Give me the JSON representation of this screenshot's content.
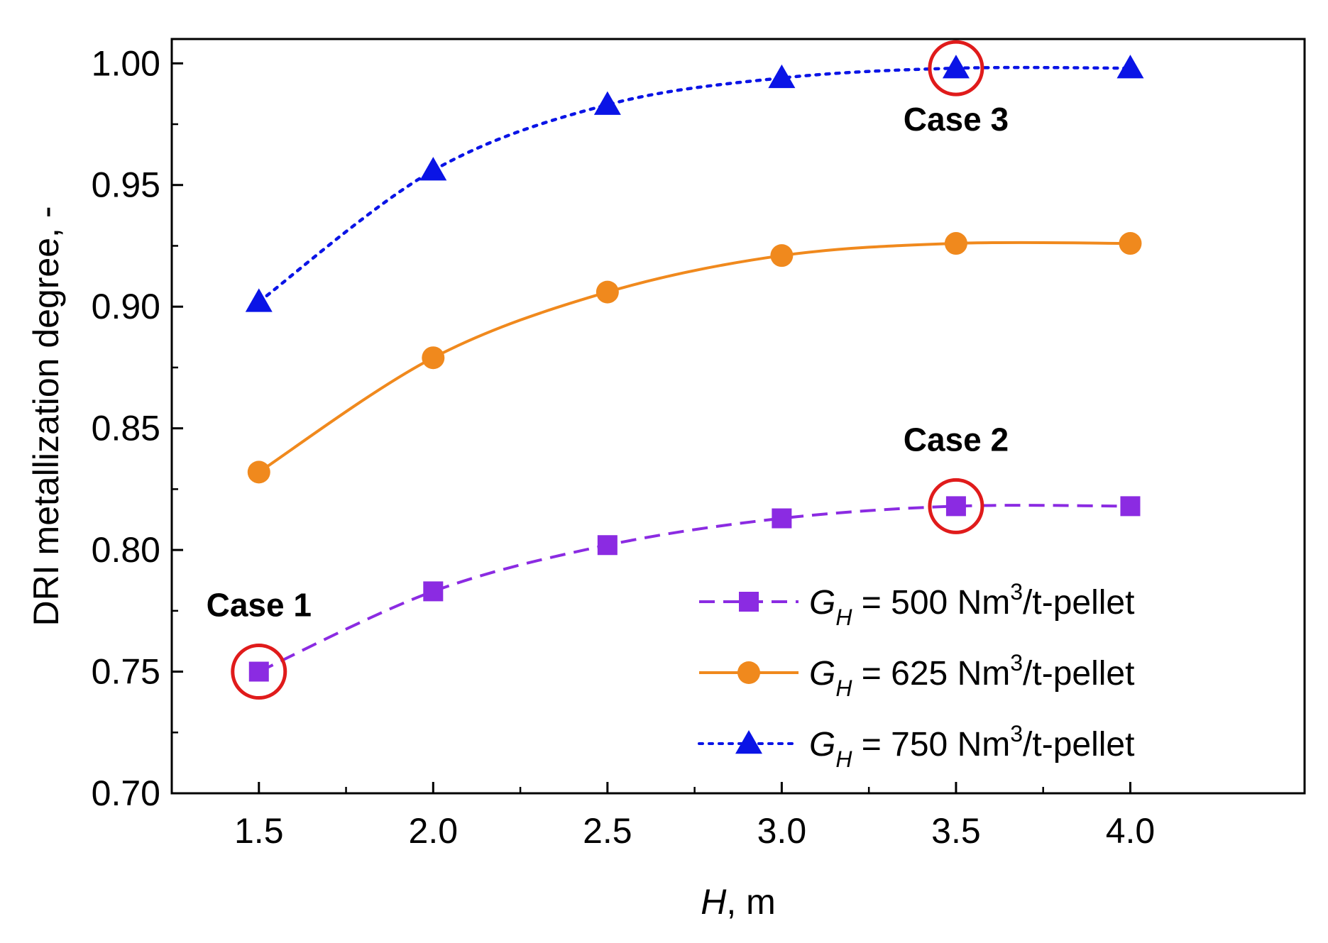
{
  "chart_data": {
    "type": "line",
    "title": "",
    "xlabel": "m",
    "xlabel_var": "H",
    "xlabel_sep": ", ",
    "ylabel": "DRI metallization degree, -",
    "xlim": [
      1.25,
      4.5
    ],
    "ylim": [
      0.7,
      1.01
    ],
    "xticks": [
      "1.5",
      "2.0",
      "2.5",
      "3.0",
      "3.5",
      "4.0"
    ],
    "yticks": [
      "0.70",
      "0.75",
      "0.80",
      "0.85",
      "0.90",
      "0.95",
      "1.00"
    ],
    "grid": false,
    "legend_position": "lower-right",
    "series": [
      {
        "name": "G_H = 500 Nm3/t-pellet",
        "legend_var": "G",
        "legend_sub": "H",
        "legend_value": " = 500 Nm",
        "legend_sup": "3",
        "legend_unit": "/t-pellet",
        "color": "#8b2be2",
        "marker": "square",
        "line_style": "dashed",
        "x": [
          1.5,
          2.0,
          2.5,
          3.0,
          3.5,
          4.0
        ],
        "y": [
          0.75,
          0.783,
          0.802,
          0.813,
          0.818,
          0.818
        ]
      },
      {
        "name": "G_H = 625 Nm3/t-pellet",
        "legend_var": "G",
        "legend_sub": "H",
        "legend_value": " = 625 Nm",
        "legend_sup": "3",
        "legend_unit": "/t-pellet",
        "color": "#f0891d",
        "marker": "circle",
        "line_style": "solid",
        "x": [
          1.5,
          2.0,
          2.5,
          3.0,
          3.5,
          4.0
        ],
        "y": [
          0.832,
          0.879,
          0.906,
          0.921,
          0.926,
          0.926
        ]
      },
      {
        "name": "G_H = 750 Nm3/t-pellet",
        "legend_var": "G",
        "legend_sub": "H",
        "legend_value": " = 750 Nm",
        "legend_sup": "3",
        "legend_unit": "/t-pellet",
        "color": "#0a14e6",
        "marker": "triangle",
        "line_style": "dotted",
        "x": [
          1.5,
          2.0,
          2.5,
          3.0,
          3.5,
          4.0
        ],
        "y": [
          0.902,
          0.956,
          0.983,
          0.994,
          0.998,
          0.998
        ]
      }
    ],
    "annotations": [
      {
        "text": "Case 1",
        "x": 1.5,
        "y": 0.75,
        "highlight_color": "#e01b1b"
      },
      {
        "text": "Case 2",
        "x": 3.5,
        "y": 0.818,
        "highlight_color": "#e01b1b"
      },
      {
        "text": "Case 3",
        "x": 3.5,
        "y": 0.998,
        "highlight_color": "#e01b1b"
      }
    ]
  }
}
